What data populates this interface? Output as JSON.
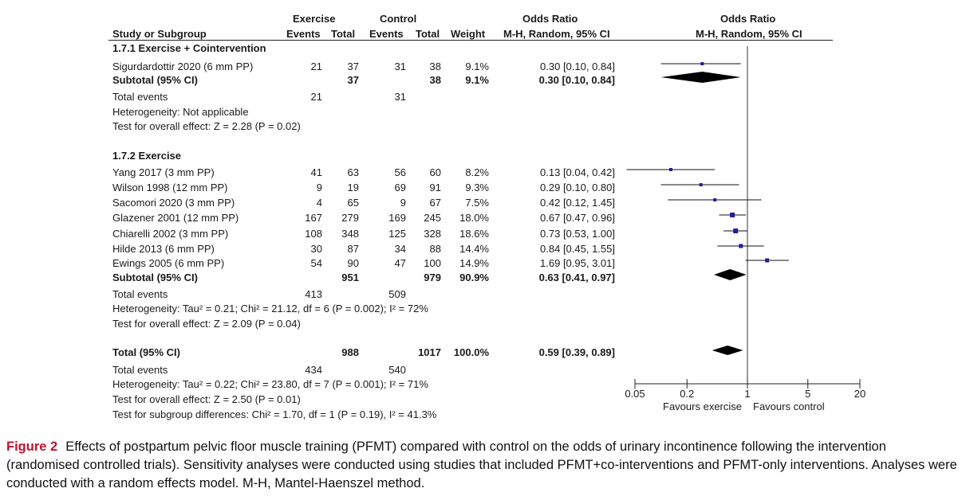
{
  "header": {
    "group1": "Exercise",
    "group2": "Control",
    "or_left": "Odds Ratio",
    "or_right": "Odds Ratio",
    "study": "Study or Subgroup",
    "events1": "Events",
    "total1": "Total",
    "events2": "Events",
    "total2": "Total",
    "weight": "Weight",
    "method_left": "M-H, Random, 95% CI",
    "method_right": "M-H, Random, 95% CI"
  },
  "subgroup1": {
    "title": "1.7.1 Exercise + Cointervention",
    "subtotal": {
      "label": "Subtotal (95% CI)",
      "total1": "37",
      "total2": "38",
      "weight": "9.1%",
      "ci": "0.30 [0.10, 0.84]"
    },
    "total_events": {
      "label": "Total events",
      "e1": "21",
      "e2": "31"
    },
    "heterogeneity": "Heterogeneity: Not applicable",
    "overall": "Test for overall effect: Z = 2.28 (P = 0.02)"
  },
  "subgroup2": {
    "title": "1.7.2 Exercise",
    "subtotal": {
      "label": "Subtotal (95% CI)",
      "total1": "951",
      "total2": "979",
      "weight": "90.9%",
      "ci": "0.63 [0.41, 0.97]"
    },
    "total_events": {
      "label": "Total events",
      "e1": "413",
      "e2": "509"
    },
    "heterogeneity": "Heterogeneity: Tau² = 0.21; Chi² = 21.12, df = 6 (P = 0.002); I² = 72%",
    "overall": "Test for overall effect: Z = 2.09 (P = 0.04)"
  },
  "total": {
    "label": "Total (95% CI)",
    "total1": "988",
    "total2": "1017",
    "weight": "100.0%",
    "ci": "0.59 [0.39, 0.89]",
    "events_label": "Total events",
    "e1": "434",
    "e2": "540",
    "heterogeneity": "Heterogeneity: Tau² = 0.22; Chi² = 23.80, df = 7 (P = 0.001); I² = 71%",
    "overall": "Test for overall effect: Z = 2.50 (P = 0.01)",
    "subgroup_diff": "Test for subgroup differences: Chi² = 1.70, df = 1 (P = 0.19), I² = 41.3%"
  },
  "axis": {
    "ticks": [
      {
        "value": 0.05,
        "label": "0.05"
      },
      {
        "value": 0.2,
        "label": "0.2"
      },
      {
        "value": 1,
        "label": "1"
      },
      {
        "value": 5,
        "label": "5"
      },
      {
        "value": 20,
        "label": "20"
      }
    ],
    "favours_left": "Favours exercise",
    "favours_right": "Favours control"
  },
  "caption": {
    "label": "Figure 2",
    "text": "Effects of postpartum pelvic floor muscle training (PFMT) compared with control on the odds of urinary incontinence following the intervention (randomised controlled trials). Sensitivity analyses were conducted using studies that included PFMT+co-interventions and PFMT-only interventions. Analyses were conducted with a random effects model. M-H, Mantel-Haenszel method."
  },
  "colors": {
    "marker": "#1f1fa0",
    "diamond": "#000000"
  },
  "chart_data": {
    "type": "forest",
    "scale": "log",
    "xlim": [
      0.05,
      20
    ],
    "null_value": 1,
    "studies": [
      {
        "name": "Sigurdardottir 2020 (6 mm PP)",
        "subgroup": "1.7.1",
        "e1": 21,
        "n1": 37,
        "e2": 31,
        "n2": 38,
        "weight": "9.1%",
        "or": 0.3,
        "lo": 0.1,
        "hi": 0.84,
        "ci_text": "0.30 [0.10, 0.84]"
      },
      {
        "name": "Yang 2017 (3 mm PP)",
        "subgroup": "1.7.2",
        "e1": 41,
        "n1": 63,
        "e2": 56,
        "n2": 60,
        "weight": "8.2%",
        "or": 0.13,
        "lo": 0.04,
        "hi": 0.42,
        "ci_text": "0.13 [0.04, 0.42]"
      },
      {
        "name": "Wilson 1998 (12 mm PP)",
        "subgroup": "1.7.2",
        "e1": 9,
        "n1": 19,
        "e2": 69,
        "n2": 91,
        "weight": "9.3%",
        "or": 0.29,
        "lo": 0.1,
        "hi": 0.8,
        "ci_text": "0.29 [0.10, 0.80]"
      },
      {
        "name": "Sacomori 2020 (3 mm PP)",
        "subgroup": "1.7.2",
        "e1": 4,
        "n1": 65,
        "e2": 9,
        "n2": 67,
        "weight": "7.5%",
        "or": 0.42,
        "lo": 0.12,
        "hi": 1.45,
        "ci_text": "0.42 [0.12, 1.45]"
      },
      {
        "name": "Glazener 2001 (12 mm PP)",
        "subgroup": "1.7.2",
        "e1": 167,
        "n1": 279,
        "e2": 169,
        "n2": 245,
        "weight": "18.0%",
        "or": 0.67,
        "lo": 0.47,
        "hi": 0.96,
        "ci_text": "0.67 [0.47, 0.96]"
      },
      {
        "name": "Chiarelli 2002 (3 mm PP)",
        "subgroup": "1.7.2",
        "e1": 108,
        "n1": 348,
        "e2": 125,
        "n2": 328,
        "weight": "18.6%",
        "or": 0.73,
        "lo": 0.53,
        "hi": 1.0,
        "ci_text": "0.73 [0.53, 1.00]"
      },
      {
        "name": "Hilde 2013 (6 mm PP)",
        "subgroup": "1.7.2",
        "e1": 30,
        "n1": 87,
        "e2": 34,
        "n2": 88,
        "weight": "14.4%",
        "or": 0.84,
        "lo": 0.45,
        "hi": 1.55,
        "ci_text": "0.84 [0.45, 1.55]"
      },
      {
        "name": "Ewings 2005 (6 mm PP)",
        "subgroup": "1.7.2",
        "e1": 54,
        "n1": 90,
        "e2": 47,
        "n2": 100,
        "weight": "14.9%",
        "or": 1.69,
        "lo": 0.95,
        "hi": 3.01,
        "ci_text": "1.69 [0.95, 3.01]"
      }
    ],
    "pooled": [
      {
        "name": "Subtotal (95% CI)",
        "subgroup": "1.7.1",
        "or": 0.3,
        "lo": 0.1,
        "hi": 0.84
      },
      {
        "name": "Subtotal (95% CI)",
        "subgroup": "1.7.2",
        "or": 0.63,
        "lo": 0.41,
        "hi": 0.97
      },
      {
        "name": "Total (95% CI)",
        "subgroup": "all",
        "or": 0.59,
        "lo": 0.39,
        "hi": 0.89
      }
    ]
  }
}
